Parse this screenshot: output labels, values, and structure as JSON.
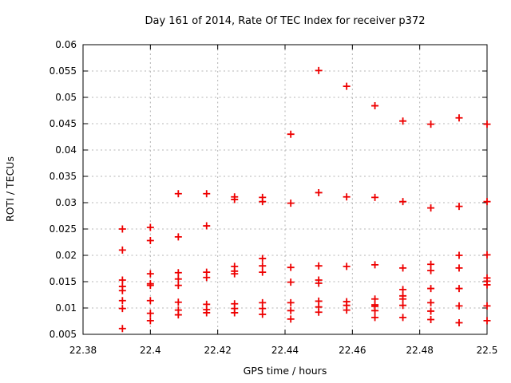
{
  "page": {
    "background": "#ffffff",
    "text_color": "#000000",
    "grid_color": "#b4b4b4"
  },
  "chart_data": {
    "type": "scatter",
    "title": "Day 161 of 2014, Rate Of TEC Index for receiver p372",
    "xlabel": "GPS time / hours",
    "ylabel": "ROTI / TECUs",
    "xlim": [
      22.38,
      22.5
    ],
    "ylim": [
      0.005,
      0.06
    ],
    "grid": true,
    "legend": "none",
    "marker": {
      "shape": "plus",
      "color": "#ee0000",
      "size": 9
    },
    "xticks": [
      {
        "v": 22.38,
        "label": "22.38"
      },
      {
        "v": 22.4,
        "label": "22.4"
      },
      {
        "v": 22.42,
        "label": "22.42"
      },
      {
        "v": 22.44,
        "label": "22.44"
      },
      {
        "v": 22.46,
        "label": "22.46"
      },
      {
        "v": 22.48,
        "label": "22.48"
      },
      {
        "v": 22.5,
        "label": "22.5"
      }
    ],
    "yticks": [
      {
        "v": 0.005,
        "label": "0.005"
      },
      {
        "v": 0.01,
        "label": "0.01"
      },
      {
        "v": 0.015,
        "label": "0.015"
      },
      {
        "v": 0.02,
        "label": "0.02"
      },
      {
        "v": 0.025,
        "label": "0.025"
      },
      {
        "v": 0.03,
        "label": "0.03"
      },
      {
        "v": 0.035,
        "label": "0.035"
      },
      {
        "v": 0.04,
        "label": "0.04"
      },
      {
        "v": 0.045,
        "label": "0.045"
      },
      {
        "v": 0.05,
        "label": "0.05"
      },
      {
        "v": 0.055,
        "label": "0.055"
      },
      {
        "v": 0.06,
        "label": "0.06"
      }
    ],
    "series": [
      {
        "name": "ROTI",
        "points": [
          [
            22.3917,
            0.025
          ],
          [
            22.3917,
            0.021
          ],
          [
            22.3917,
            0.0153
          ],
          [
            22.3917,
            0.0141
          ],
          [
            22.3917,
            0.0133
          ],
          [
            22.3917,
            0.0114
          ],
          [
            22.3917,
            0.0099
          ],
          [
            22.3917,
            0.0061
          ],
          [
            22.4,
            0.0253
          ],
          [
            22.4,
            0.0228
          ],
          [
            22.4,
            0.0165
          ],
          [
            22.4,
            0.0146
          ],
          [
            22.4,
            0.0143
          ],
          [
            22.4,
            0.0114
          ],
          [
            22.4,
            0.009
          ],
          [
            22.4,
            0.0076
          ],
          [
            22.4083,
            0.0317
          ],
          [
            22.4083,
            0.0235
          ],
          [
            22.4083,
            0.0167
          ],
          [
            22.4083,
            0.0155
          ],
          [
            22.4083,
            0.0143
          ],
          [
            22.4083,
            0.0111
          ],
          [
            22.4083,
            0.0096
          ],
          [
            22.4083,
            0.0087
          ],
          [
            22.4167,
            0.0317
          ],
          [
            22.4167,
            0.0256
          ],
          [
            22.4167,
            0.0168
          ],
          [
            22.4167,
            0.0158
          ],
          [
            22.4167,
            0.0107
          ],
          [
            22.4167,
            0.0097
          ],
          [
            22.4167,
            0.0091
          ],
          [
            22.425,
            0.0311
          ],
          [
            22.425,
            0.0306
          ],
          [
            22.425,
            0.0179
          ],
          [
            22.425,
            0.017
          ],
          [
            22.425,
            0.0165
          ],
          [
            22.425,
            0.0108
          ],
          [
            22.425,
            0.0099
          ],
          [
            22.425,
            0.0091
          ],
          [
            22.4333,
            0.031
          ],
          [
            22.4333,
            0.0302
          ],
          [
            22.4333,
            0.0194
          ],
          [
            22.4333,
            0.018
          ],
          [
            22.4333,
            0.0168
          ],
          [
            22.4333,
            0.011
          ],
          [
            22.4333,
            0.0099
          ],
          [
            22.4333,
            0.0088
          ],
          [
            22.4417,
            0.043
          ],
          [
            22.4417,
            0.0299
          ],
          [
            22.4417,
            0.0177
          ],
          [
            22.4417,
            0.0149
          ],
          [
            22.4417,
            0.011
          ],
          [
            22.4417,
            0.0095
          ],
          [
            22.4417,
            0.0079
          ],
          [
            22.45,
            0.0551
          ],
          [
            22.45,
            0.0319
          ],
          [
            22.45,
            0.018
          ],
          [
            22.45,
            0.0153
          ],
          [
            22.45,
            0.0147
          ],
          [
            22.45,
            0.0113
          ],
          [
            22.45,
            0.0102
          ],
          [
            22.45,
            0.0092
          ],
          [
            22.4583,
            0.0521
          ],
          [
            22.4583,
            0.0311
          ],
          [
            22.4583,
            0.0179
          ],
          [
            22.4583,
            0.0112
          ],
          [
            22.4583,
            0.0105
          ],
          [
            22.4583,
            0.0096
          ],
          [
            22.4667,
            0.0484
          ],
          [
            22.4667,
            0.031
          ],
          [
            22.4667,
            0.0182
          ],
          [
            22.4667,
            0.0117
          ],
          [
            22.4667,
            0.0106
          ],
          [
            22.4667,
            0.0103
          ],
          [
            22.4667,
            0.0095
          ],
          [
            22.4667,
            0.0082
          ],
          [
            22.475,
            0.0455
          ],
          [
            22.475,
            0.0302
          ],
          [
            22.475,
            0.0176
          ],
          [
            22.475,
            0.0135
          ],
          [
            22.475,
            0.0123
          ],
          [
            22.475,
            0.0117
          ],
          [
            22.475,
            0.0105
          ],
          [
            22.475,
            0.0082
          ],
          [
            22.4833,
            0.0449
          ],
          [
            22.4833,
            0.029
          ],
          [
            22.4833,
            0.0183
          ],
          [
            22.4833,
            0.0171
          ],
          [
            22.4833,
            0.0137
          ],
          [
            22.4833,
            0.011
          ],
          [
            22.4833,
            0.0094
          ],
          [
            22.4833,
            0.0078
          ],
          [
            22.4917,
            0.0461
          ],
          [
            22.4917,
            0.0293
          ],
          [
            22.4917,
            0.02
          ],
          [
            22.4917,
            0.0176
          ],
          [
            22.4917,
            0.0137
          ],
          [
            22.4917,
            0.0104
          ],
          [
            22.4917,
            0.0072
          ],
          [
            22.5,
            0.0449
          ],
          [
            22.5,
            0.0302
          ],
          [
            22.5,
            0.0201
          ],
          [
            22.5,
            0.0157
          ],
          [
            22.5,
            0.0151
          ],
          [
            22.5,
            0.0144
          ],
          [
            22.5,
            0.0104
          ],
          [
            22.5,
            0.0076
          ]
        ]
      }
    ]
  }
}
